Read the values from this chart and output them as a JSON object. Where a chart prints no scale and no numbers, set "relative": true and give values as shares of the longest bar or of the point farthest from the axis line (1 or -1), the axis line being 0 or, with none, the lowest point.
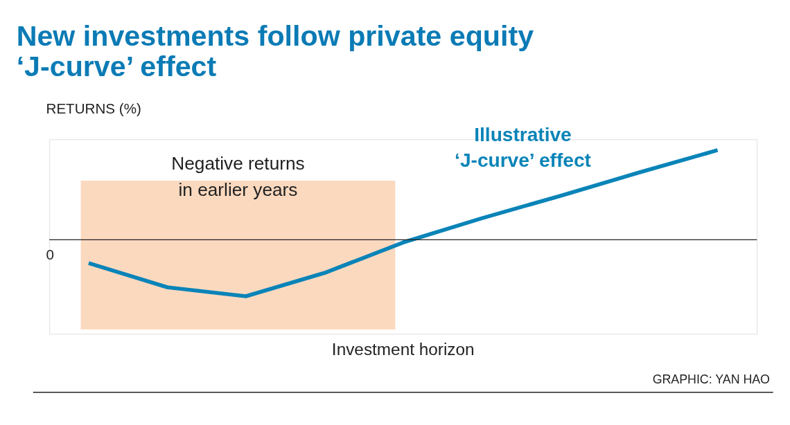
{
  "chart_data": {
    "type": "line",
    "title": "New investments follow private equity ‘J-curve’ effect",
    "ylabel": "RETURNS (%)",
    "xlabel": "Investment horizon",
    "relative": true,
    "categories": [
      null,
      null,
      null,
      null,
      null,
      null,
      null,
      null,
      null
    ],
    "series": [
      {
        "name": "Illustrative ‘J-curve’ effect",
        "color": "#0a84b8",
        "values": [
          -0.26,
          -0.53,
          -0.63,
          -0.37,
          -0.03,
          0.24,
          0.49,
          0.75,
          1.0
        ]
      }
    ],
    "ref_lines": [
      {
        "axis": "y",
        "value": 0,
        "label": "0",
        "color": "#222222"
      }
    ],
    "annotations": [
      "Negative returns in earlier years",
      "GRAPHIC: YAN HAO"
    ],
    "legend": false,
    "marker": "none",
    "line_style": "solid"
  }
}
